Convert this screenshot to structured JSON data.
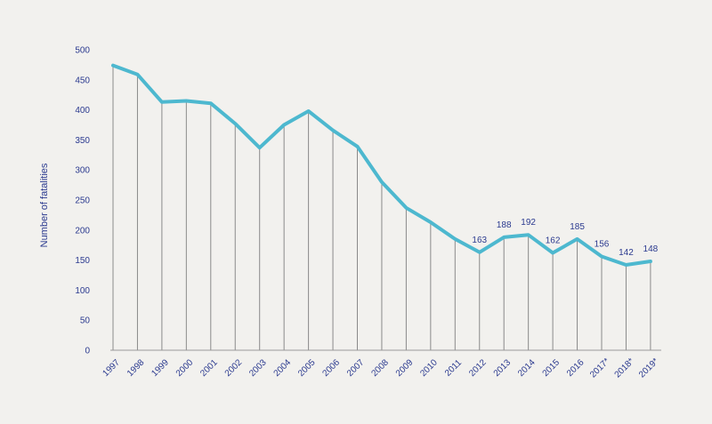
{
  "chart_data": {
    "type": "line",
    "title": "",
    "xlabel": "",
    "ylabel": "Number of fatalities",
    "ylim": [
      0,
      500
    ],
    "yticks": [
      0,
      50,
      100,
      150,
      200,
      250,
      300,
      350,
      400,
      450,
      500
    ],
    "categories": [
      "1997",
      "1998",
      "1999",
      "2000",
      "2001",
      "2002",
      "2003",
      "2004",
      "2005",
      "2006",
      "2007",
      "2008",
      "2009",
      "2010",
      "2011",
      "2012",
      "2013",
      "2014",
      "2015",
      "2016",
      "2017*",
      "2018*",
      "2019*"
    ],
    "values": [
      474,
      459,
      413,
      415,
      411,
      377,
      337,
      375,
      398,
      366,
      339,
      280,
      237,
      213,
      185,
      163,
      188,
      192,
      162,
      185,
      156,
      142,
      148
    ],
    "data_labels": [
      {
        "category": "2012",
        "text": "163"
      },
      {
        "category": "2013",
        "text": "188"
      },
      {
        "category": "2014",
        "text": "192"
      },
      {
        "category": "2015",
        "text": "162"
      },
      {
        "category": "2016",
        "text": "185"
      },
      {
        "category": "2017*",
        "text": "156"
      },
      {
        "category": "2018*",
        "text": "142"
      },
      {
        "category": "2019*",
        "text": "148"
      }
    ],
    "grid": false,
    "drop_lines": true,
    "colors": {
      "line": "#4db8cf",
      "drop_line": "#8a8a8a",
      "axis": "#999999",
      "text": "#2b3a8f",
      "background": "#f2f1ee"
    }
  }
}
